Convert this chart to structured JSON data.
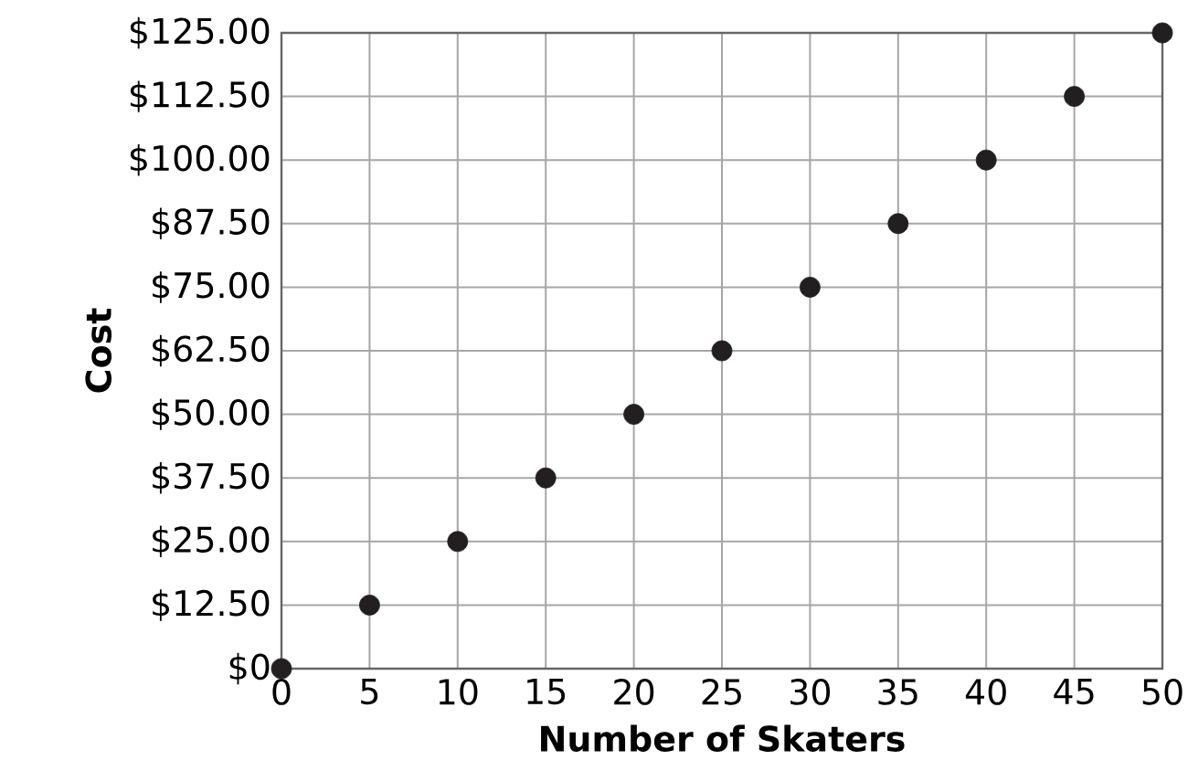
{
  "chart_data": {
    "type": "scatter",
    "xlabel": "Number of Skaters",
    "ylabel": "Cost",
    "x": [
      0,
      5,
      10,
      15,
      20,
      25,
      30,
      35,
      40,
      45,
      50
    ],
    "values": [
      0,
      12.5,
      25,
      37.5,
      50,
      62.5,
      75,
      87.5,
      100,
      112.5,
      125
    ],
    "color": "#231f20",
    "marker": "circle",
    "grid": true,
    "xlim": [
      0,
      50
    ],
    "xticks": [
      0,
      5,
      10,
      15,
      20,
      25,
      30,
      35,
      40,
      45,
      50
    ],
    "ylim": [
      0,
      125
    ],
    "yticks": [
      {
        "value": 0,
        "label": "$0"
      },
      {
        "value": 12.5,
        "label": "$12.50"
      },
      {
        "value": 25,
        "label": "$25.00"
      },
      {
        "value": 37.5,
        "label": "$37.50"
      },
      {
        "value": 50,
        "label": "$50.00"
      },
      {
        "value": 62.5,
        "label": "$62.50"
      },
      {
        "value": 75,
        "label": "$75.00"
      },
      {
        "value": 87.5,
        "label": "$87.50"
      },
      {
        "value": 100,
        "label": "$100.00"
      },
      {
        "value": 112.5,
        "label": "$112.50"
      },
      {
        "value": 125,
        "label": "$125.00"
      }
    ]
  }
}
